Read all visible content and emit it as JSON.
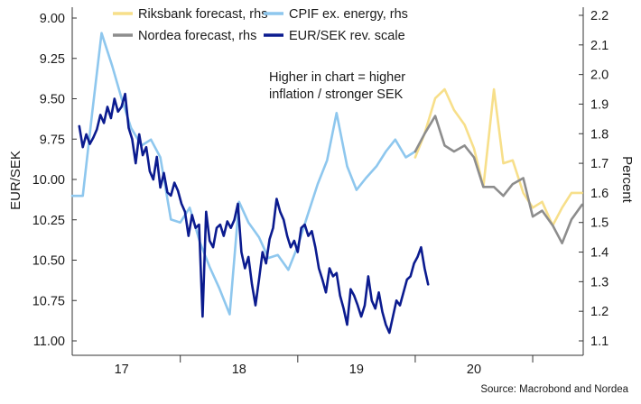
{
  "chart_data": {
    "type": "line",
    "source": "Source: Macrobond and Nordea",
    "annotation": [
      "Higher in chart = higher",
      "inflation / stronger SEK"
    ],
    "ylabel_left": "EUR/SEK",
    "ylabel_right": "Percent",
    "left_axis": {
      "reversed": true,
      "range": [
        9.0,
        11.0
      ],
      "ticks": [
        "9.00",
        "9.25",
        "9.50",
        "9.75",
        "10.00",
        "10.25",
        "10.50",
        "10.75",
        "11.00"
      ]
    },
    "right_axis": {
      "range": [
        1.1,
        2.2
      ],
      "ticks": [
        "2.2",
        "2.1",
        "2.0",
        "1.9",
        "1.8",
        "1.7",
        "1.6",
        "1.5",
        "1.4",
        "1.3",
        "1.2",
        "1.1"
      ]
    },
    "x_axis": {
      "range": [
        2016.58,
        2020.93
      ],
      "tick_labels": [
        {
          "label": "17",
          "x": 2017.0
        },
        {
          "label": "18",
          "x": 2018.0
        },
        {
          "label": "19",
          "x": 2019.0
        },
        {
          "label": "20",
          "x": 2020.0
        }
      ],
      "separators": [
        2017.5,
        2018.5,
        2019.5,
        2020.5
      ]
    },
    "legend": {
      "position": "top",
      "columns": 2
    },
    "series": [
      {
        "name": "Riksbank forecast, rhs",
        "axis": "right",
        "color": "#f7df8a",
        "x": [
          2019.5,
          2019.58,
          2019.67,
          2019.75,
          2019.83,
          2019.92,
          2020.0,
          2020.08,
          2020.17,
          2020.25,
          2020.33,
          2020.42,
          2020.5,
          2020.58,
          2020.67,
          2020.75,
          2020.83,
          2020.92
        ],
        "y": [
          1.72,
          1.8,
          1.92,
          1.95,
          1.88,
          1.83,
          1.75,
          1.62,
          1.95,
          1.7,
          1.71,
          1.6,
          1.55,
          1.57,
          1.49,
          1.55,
          1.6,
          1.6
        ]
      },
      {
        "name": "CPIF ex. energy, rhs",
        "axis": "right",
        "color": "#8ec7ee",
        "x": [
          2016.58,
          2016.67,
          2016.75,
          2016.83,
          2016.92,
          2017.0,
          2017.08,
          2017.17,
          2017.25,
          2017.33,
          2017.42,
          2017.5,
          2017.58,
          2017.67,
          2017.75,
          2017.83,
          2017.92,
          2018.0,
          2018.08,
          2018.17,
          2018.25,
          2018.33,
          2018.42,
          2018.5,
          2018.58,
          2018.67,
          2018.75,
          2018.83,
          2018.92,
          2019.0,
          2019.08,
          2019.17,
          2019.25,
          2019.33,
          2019.42,
          2019.5
        ],
        "y": [
          1.59,
          1.59,
          1.87,
          2.14,
          2.03,
          1.92,
          1.82,
          1.76,
          1.78,
          1.72,
          1.51,
          1.5,
          1.55,
          1.43,
          1.35,
          1.28,
          1.19,
          1.57,
          1.5,
          1.45,
          1.38,
          1.39,
          1.34,
          1.42,
          1.52,
          1.63,
          1.71,
          1.87,
          1.69,
          1.61,
          1.65,
          1.69,
          1.74,
          1.78,
          1.72,
          1.74
        ]
      },
      {
        "name": "Nordea forecast, rhs",
        "axis": "right",
        "color": "#8d8d8d",
        "x": [
          2019.5,
          2019.58,
          2019.67,
          2019.75,
          2019.83,
          2019.92,
          2020.0,
          2020.08,
          2020.17,
          2020.25,
          2020.33,
          2020.42,
          2020.5,
          2020.58,
          2020.67,
          2020.75,
          2020.83,
          2020.92
        ],
        "y": [
          1.74,
          1.8,
          1.86,
          1.76,
          1.74,
          1.76,
          1.72,
          1.62,
          1.62,
          1.59,
          1.63,
          1.65,
          1.52,
          1.54,
          1.49,
          1.43,
          1.51,
          1.56
        ]
      },
      {
        "name": "EUR/SEK rev. scale",
        "axis": "left",
        "color": "#0b1b8f",
        "stroke_width": 2.6,
        "x": [
          2016.64,
          2016.67,
          2016.7,
          2016.73,
          2016.76,
          2016.79,
          2016.82,
          2016.85,
          2016.88,
          2016.91,
          2016.94,
          2016.97,
          2017.0,
          2017.03,
          2017.06,
          2017.09,
          2017.12,
          2017.15,
          2017.18,
          2017.21,
          2017.24,
          2017.27,
          2017.3,
          2017.33,
          2017.36,
          2017.39,
          2017.42,
          2017.45,
          2017.48,
          2017.51,
          2017.54,
          2017.57,
          2017.6,
          2017.63,
          2017.66,
          2017.69,
          2017.72,
          2017.75,
          2017.78,
          2017.81,
          2017.84,
          2017.87,
          2017.9,
          2017.93,
          2017.96,
          2017.99,
          2018.02,
          2018.05,
          2018.08,
          2018.11,
          2018.14,
          2018.17,
          2018.2,
          2018.23,
          2018.26,
          2018.29,
          2018.32,
          2018.35,
          2018.38,
          2018.41,
          2018.44,
          2018.47,
          2018.5,
          2018.53,
          2018.56,
          2018.59,
          2018.62,
          2018.65,
          2018.68,
          2018.71,
          2018.74,
          2018.77,
          2018.8,
          2018.83,
          2018.86,
          2018.89,
          2018.92,
          2018.95,
          2018.98,
          2019.01,
          2019.04,
          2019.07,
          2019.1,
          2019.13,
          2019.16,
          2019.19,
          2019.22,
          2019.25,
          2019.28,
          2019.31,
          2019.34,
          2019.37,
          2019.4,
          2019.43,
          2019.46,
          2019.49,
          2019.52,
          2019.55,
          2019.58,
          2019.61
        ],
        "y": [
          9.67,
          9.8,
          9.72,
          9.78,
          9.74,
          9.69,
          9.6,
          9.65,
          9.55,
          9.62,
          9.5,
          9.58,
          9.55,
          9.47,
          9.68,
          9.75,
          9.9,
          9.72,
          9.85,
          9.8,
          9.95,
          10.0,
          9.86,
          10.05,
          9.96,
          10.08,
          10.1,
          10.02,
          10.07,
          10.15,
          10.2,
          10.35,
          10.22,
          10.3,
          10.28,
          10.85,
          10.2,
          10.38,
          10.42,
          10.3,
          10.28,
          10.35,
          10.26,
          10.3,
          10.25,
          10.15,
          10.45,
          10.55,
          10.48,
          10.65,
          10.78,
          10.62,
          10.45,
          10.52,
          10.37,
          10.3,
          10.12,
          10.2,
          10.25,
          10.35,
          10.42,
          10.38,
          10.45,
          10.3,
          10.28,
          10.35,
          10.32,
          10.42,
          10.55,
          10.62,
          10.7,
          10.55,
          10.6,
          10.58,
          10.72,
          10.8,
          10.9,
          10.68,
          10.72,
          10.78,
          10.85,
          10.78,
          10.6,
          10.75,
          10.8,
          10.7,
          10.82,
          10.9,
          10.95,
          10.85,
          10.75,
          10.78,
          10.7,
          10.62,
          10.6,
          10.52,
          10.48,
          10.42,
          10.55,
          10.65
        ]
      }
    ]
  }
}
